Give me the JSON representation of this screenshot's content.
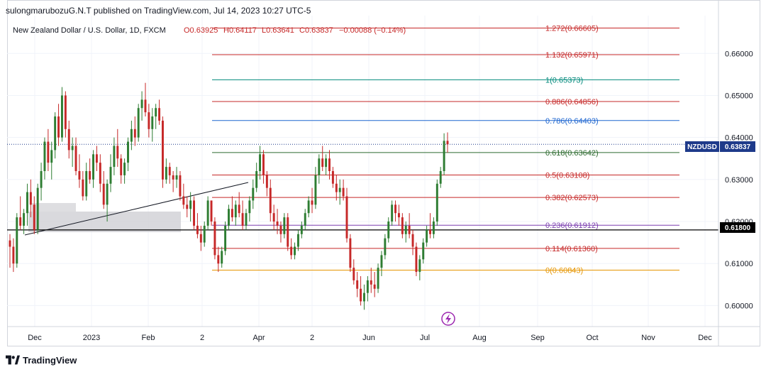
{
  "header": {
    "publish_line": "sulongmarubozuG.N.T published on TradingView.com, Jul 14, 2023 10:27 UTC-5"
  },
  "footer": {
    "brand": "TradingView",
    "logo_icon": "tradingview-logo-icon"
  },
  "legend": {
    "name": "New Zealand Dollar / U.S. Dollar, 1D, FXCM",
    "open": "O0.63925",
    "high": "H0.64117",
    "low": "L0.63641",
    "close": "C0.63837",
    "change": "−0.00088 (−0.14%)"
  },
  "price_labels": {
    "symbol": "NZDUSD",
    "last": "0.63837",
    "level": "0.61800"
  },
  "colors": {
    "up": "#2e7d32",
    "down": "#c62828",
    "axis_text": "#131722",
    "grid": "#f0f3fa"
  },
  "chart_data": {
    "type": "candlestick",
    "symbol": "NZDUSD",
    "timeframe": "1D",
    "ylim": [
      0.595,
      0.669
    ],
    "y_ticks": [
      "0.60000",
      "0.61000",
      "0.62000",
      "0.63000",
      "0.64000",
      "0.65000",
      "0.66000"
    ],
    "x_ticks": [
      "Dec",
      "2023",
      "Feb",
      "2",
      "Apr",
      "2",
      "Jun",
      "Jul",
      "Aug",
      "Sep",
      "Oct",
      "Nov",
      "Dec"
    ],
    "fib_levels": [
      {
        "label": "1.272(0.66605)",
        "value": 0.66605,
        "color": "#c62828"
      },
      {
        "label": "1.132(0.65971)",
        "value": 0.65971,
        "color": "#c62828"
      },
      {
        "label": "1(0.65373)",
        "value": 0.65373,
        "color": "#00897b"
      },
      {
        "label": "0.886(0.64856)",
        "value": 0.64856,
        "color": "#c62828"
      },
      {
        "label": "0.786(0.64403)",
        "value": 0.64403,
        "color": "#1e66d0"
      },
      {
        "label": "0.618(0.63642)",
        "value": 0.63642,
        "color": "#2e6b30"
      },
      {
        "label": "0.5(0.63108)",
        "value": 0.63108,
        "color": "#c62828"
      },
      {
        "label": "0.382(0.62573)",
        "value": 0.62573,
        "color": "#c62828"
      },
      {
        "label": "0.236(0.61912)",
        "value": 0.61912,
        "color": "#7b3fb0"
      },
      {
        "label": "0.114(0.61360)",
        "value": 0.6136,
        "color": "#c62828"
      },
      {
        "label": "0(0.60843)",
        "value": 0.60843,
        "color": "#e69500"
      }
    ],
    "horizontal_line": 0.618,
    "last_price": 0.63837,
    "candles": [
      [
        0.6155,
        0.617,
        0.609,
        0.614
      ],
      [
        0.614,
        0.616,
        0.608,
        0.61
      ],
      [
        0.61,
        0.622,
        0.609,
        0.621
      ],
      [
        0.621,
        0.626,
        0.618,
        0.619
      ],
      [
        0.619,
        0.623,
        0.617,
        0.622
      ],
      [
        0.622,
        0.629,
        0.619,
        0.627
      ],
      [
        0.627,
        0.63,
        0.621,
        0.624
      ],
      [
        0.624,
        0.626,
        0.617,
        0.618
      ],
      [
        0.618,
        0.629,
        0.617,
        0.628
      ],
      [
        0.628,
        0.634,
        0.625,
        0.632
      ],
      [
        0.632,
        0.64,
        0.63,
        0.639
      ],
      [
        0.639,
        0.642,
        0.632,
        0.634
      ],
      [
        0.634,
        0.639,
        0.63,
        0.637
      ],
      [
        0.637,
        0.646,
        0.635,
        0.645
      ],
      [
        0.645,
        0.648,
        0.638,
        0.64
      ],
      [
        0.64,
        0.652,
        0.639,
        0.65
      ],
      [
        0.65,
        0.651,
        0.64,
        0.642
      ],
      [
        0.642,
        0.644,
        0.635,
        0.637
      ],
      [
        0.637,
        0.64,
        0.633,
        0.638
      ],
      [
        0.638,
        0.64,
        0.631,
        0.632
      ],
      [
        0.632,
        0.636,
        0.628,
        0.63
      ],
      [
        0.63,
        0.632,
        0.625,
        0.626
      ],
      [
        0.626,
        0.634,
        0.625,
        0.632
      ],
      [
        0.632,
        0.635,
        0.629,
        0.63
      ],
      [
        0.63,
        0.637,
        0.628,
        0.636
      ],
      [
        0.636,
        0.638,
        0.632,
        0.634
      ],
      [
        0.634,
        0.636,
        0.627,
        0.629
      ],
      [
        0.629,
        0.632,
        0.623,
        0.624
      ],
      [
        0.624,
        0.63,
        0.62,
        0.629
      ],
      [
        0.629,
        0.636,
        0.627,
        0.633
      ],
      [
        0.633,
        0.64,
        0.631,
        0.638
      ],
      [
        0.638,
        0.642,
        0.633,
        0.635
      ],
      [
        0.635,
        0.636,
        0.629,
        0.631
      ],
      [
        0.631,
        0.635,
        0.629,
        0.634
      ],
      [
        0.634,
        0.64,
        0.632,
        0.639
      ],
      [
        0.639,
        0.644,
        0.637,
        0.642
      ],
      [
        0.642,
        0.645,
        0.638,
        0.64
      ],
      [
        0.64,
        0.648,
        0.639,
        0.647
      ],
      [
        0.647,
        0.651,
        0.644,
        0.649
      ],
      [
        0.649,
        0.653,
        0.645,
        0.646
      ],
      [
        0.646,
        0.648,
        0.64,
        0.642
      ],
      [
        0.642,
        0.647,
        0.639,
        0.645
      ],
      [
        0.645,
        0.648,
        0.642,
        0.647
      ],
      [
        0.647,
        0.649,
        0.643,
        0.644
      ],
      [
        0.644,
        0.645,
        0.628,
        0.63
      ],
      [
        0.63,
        0.635,
        0.629,
        0.633
      ],
      [
        0.633,
        0.634,
        0.629,
        0.631
      ],
      [
        0.631,
        0.632,
        0.627,
        0.63
      ],
      [
        0.63,
        0.633,
        0.628,
        0.631
      ],
      [
        0.631,
        0.632,
        0.625,
        0.626
      ],
      [
        0.626,
        0.629,
        0.623,
        0.624
      ],
      [
        0.624,
        0.626,
        0.621,
        0.623
      ],
      [
        0.623,
        0.627,
        0.62,
        0.625
      ],
      [
        0.625,
        0.626,
        0.618,
        0.619
      ],
      [
        0.619,
        0.622,
        0.616,
        0.617
      ],
      [
        0.617,
        0.619,
        0.613,
        0.615
      ],
      [
        0.615,
        0.62,
        0.614,
        0.619
      ],
      [
        0.619,
        0.626,
        0.618,
        0.625
      ],
      [
        0.625,
        0.625,
        0.619,
        0.62
      ],
      [
        0.62,
        0.621,
        0.611,
        0.612
      ],
      [
        0.612,
        0.614,
        0.608,
        0.61
      ],
      [
        0.61,
        0.614,
        0.609,
        0.613
      ],
      [
        0.613,
        0.62,
        0.612,
        0.619
      ],
      [
        0.619,
        0.624,
        0.618,
        0.623
      ],
      [
        0.623,
        0.626,
        0.62,
        0.621
      ],
      [
        0.621,
        0.625,
        0.619,
        0.624
      ],
      [
        0.624,
        0.627,
        0.621,
        0.622
      ],
      [
        0.622,
        0.625,
        0.618,
        0.619
      ],
      [
        0.619,
        0.623,
        0.618,
        0.622
      ],
      [
        0.622,
        0.626,
        0.62,
        0.625
      ],
      [
        0.625,
        0.63,
        0.623,
        0.628
      ],
      [
        0.628,
        0.634,
        0.627,
        0.632
      ],
      [
        0.632,
        0.638,
        0.63,
        0.636
      ],
      [
        0.636,
        0.637,
        0.629,
        0.631
      ],
      [
        0.631,
        0.632,
        0.626,
        0.628
      ],
      [
        0.628,
        0.63,
        0.62,
        0.622
      ],
      [
        0.622,
        0.624,
        0.618,
        0.62
      ],
      [
        0.62,
        0.623,
        0.617,
        0.619
      ],
      [
        0.619,
        0.62,
        0.615,
        0.617
      ],
      [
        0.617,
        0.622,
        0.616,
        0.621
      ],
      [
        0.621,
        0.622,
        0.613,
        0.614
      ],
      [
        0.614,
        0.616,
        0.611,
        0.612
      ],
      [
        0.612,
        0.615,
        0.611,
        0.614
      ],
      [
        0.614,
        0.618,
        0.613,
        0.617
      ],
      [
        0.617,
        0.62,
        0.616,
        0.619
      ],
      [
        0.619,
        0.623,
        0.618,
        0.622
      ],
      [
        0.622,
        0.626,
        0.621,
        0.625
      ],
      [
        0.625,
        0.628,
        0.622,
        0.624
      ],
      [
        0.624,
        0.633,
        0.623,
        0.631
      ],
      [
        0.631,
        0.636,
        0.629,
        0.635
      ],
      [
        0.635,
        0.638,
        0.632,
        0.633
      ],
      [
        0.633,
        0.636,
        0.631,
        0.635
      ],
      [
        0.635,
        0.637,
        0.63,
        0.632
      ],
      [
        0.632,
        0.633,
        0.628,
        0.629
      ],
      [
        0.629,
        0.631,
        0.625,
        0.627
      ],
      [
        0.627,
        0.63,
        0.624,
        0.628
      ],
      [
        0.628,
        0.63,
        0.625,
        0.626
      ],
      [
        0.626,
        0.628,
        0.615,
        0.616
      ],
      [
        0.616,
        0.617,
        0.608,
        0.609
      ],
      [
        0.609,
        0.611,
        0.605,
        0.606
      ],
      [
        0.606,
        0.608,
        0.602,
        0.604
      ],
      [
        0.604,
        0.607,
        0.6,
        0.601
      ],
      [
        0.601,
        0.605,
        0.599,
        0.603
      ],
      [
        0.603,
        0.607,
        0.601,
        0.606
      ],
      [
        0.606,
        0.609,
        0.603,
        0.605
      ],
      [
        0.605,
        0.608,
        0.602,
        0.604
      ],
      [
        0.604,
        0.61,
        0.603,
        0.609
      ],
      [
        0.609,
        0.613,
        0.607,
        0.612
      ],
      [
        0.612,
        0.617,
        0.611,
        0.616
      ],
      [
        0.616,
        0.621,
        0.615,
        0.62
      ],
      [
        0.62,
        0.625,
        0.619,
        0.624
      ],
      [
        0.624,
        0.625,
        0.62,
        0.622
      ],
      [
        0.622,
        0.624,
        0.619,
        0.621
      ],
      [
        0.621,
        0.622,
        0.616,
        0.617
      ],
      [
        0.617,
        0.62,
        0.615,
        0.619
      ],
      [
        0.619,
        0.622,
        0.616,
        0.617
      ],
      [
        0.617,
        0.618,
        0.612,
        0.614
      ],
      [
        0.614,
        0.615,
        0.607,
        0.608
      ],
      [
        0.608,
        0.612,
        0.606,
        0.611
      ],
      [
        0.611,
        0.616,
        0.61,
        0.615
      ],
      [
        0.615,
        0.619,
        0.614,
        0.618
      ],
      [
        0.618,
        0.622,
        0.616,
        0.617
      ],
      [
        0.617,
        0.621,
        0.616,
        0.62
      ],
      [
        0.62,
        0.63,
        0.619,
        0.629
      ],
      [
        0.629,
        0.633,
        0.628,
        0.632
      ],
      [
        0.632,
        0.641,
        0.631,
        0.6392
      ],
      [
        0.6392,
        0.6412,
        0.6364,
        0.6384
      ]
    ]
  }
}
